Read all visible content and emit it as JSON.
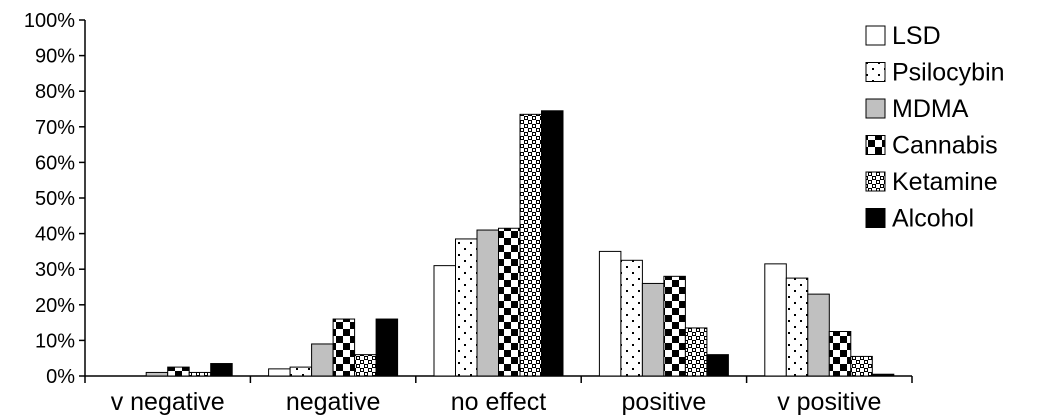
{
  "chart_data": {
    "type": "bar",
    "categories": [
      "v negative",
      "negative",
      "no effect",
      "positive",
      "v positive"
    ],
    "series": [
      {
        "name": "LSD",
        "pattern": "white",
        "values": [
          0.0,
          2.0,
          31.0,
          35.0,
          31.5
        ]
      },
      {
        "name": "Psilocybin",
        "pattern": "dots",
        "values": [
          0.0,
          2.5,
          38.5,
          32.5,
          27.5
        ]
      },
      {
        "name": "MDMA",
        "pattern": "gray",
        "values": [
          1.0,
          9.0,
          41.0,
          26.0,
          23.0
        ]
      },
      {
        "name": "Cannabis",
        "pattern": "checker",
        "values": [
          2.5,
          16.0,
          41.5,
          28.0,
          12.5
        ]
      },
      {
        "name": "Ketamine",
        "pattern": "small-checker",
        "values": [
          1.0,
          6.0,
          73.5,
          13.5,
          5.5
        ]
      },
      {
        "name": "Alcohol",
        "pattern": "black",
        "values": [
          3.5,
          16.0,
          74.5,
          6.0,
          0.5
        ]
      }
    ],
    "y_ticks": [
      "0%",
      "10%",
      "20%",
      "30%",
      "40%",
      "50%",
      "60%",
      "70%",
      "80%",
      "90%",
      "100%"
    ],
    "ylim": [
      0,
      100
    ],
    "grid": false,
    "legend_position": "right",
    "colors": {
      "gray": "#c0c0c0",
      "black": "#000000",
      "white": "#ffffff"
    }
  }
}
